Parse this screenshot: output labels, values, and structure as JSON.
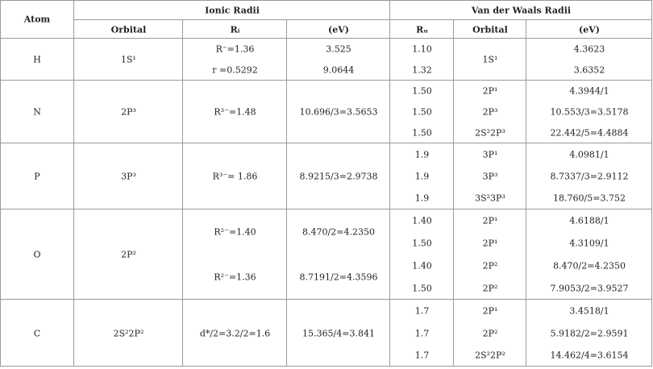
{
  "header": {
    "atom": "Atom",
    "ionic": "Ionic Radii",
    "vdw": "Van der Waals Radii",
    "columns": [
      "Orbital",
      "Rᵢ",
      "(eV)",
      "Rᵤ",
      "Orbital",
      "(eV)"
    ]
  },
  "rows": [
    {
      "atom": "H",
      "ionic_orbital": [
        "1S¹"
      ],
      "ionic_r": [
        "R⁻=1.36",
        "r =0.5292"
      ],
      "ionic_ev": [
        "3.525",
        "9.0644"
      ],
      "vdw_r": [
        "1.10",
        "1.32"
      ],
      "vdw_orbital": [
        "1S¹"
      ],
      "vdw_ev": [
        "4.3623",
        "3.6352"
      ]
    },
    {
      "atom": "N",
      "ionic_orbital": [
        "2P³"
      ],
      "ionic_r": [
        "R³⁻=1.48"
      ],
      "ionic_ev": [
        "10.696/3=3.5653"
      ],
      "vdw_r": [
        "1.50",
        "1.50",
        "1.50"
      ],
      "vdw_orbital": [
        "2P¹",
        "2P³",
        "2S²2P³"
      ],
      "vdw_ev": [
        "4.3944/1",
        "10.553/3=3.5178",
        "22.442/5=4.4884"
      ]
    },
    {
      "atom": "P",
      "ionic_orbital": [
        "3P³"
      ],
      "ionic_r": [
        "R³⁻= 1.86"
      ],
      "ionic_ev": [
        "8.9215/3=2.9738"
      ],
      "vdw_r": [
        "1.9",
        "1.9",
        "1.9"
      ],
      "vdw_orbital": [
        "3P¹",
        "3P³",
        "3S²3P³"
      ],
      "vdw_ev": [
        "4.0981/1",
        "8.7337/3=2.9112",
        "18.760/5=3.752"
      ]
    },
    {
      "atom": "O",
      "ionic_orbital": [
        "2P²"
      ],
      "ionic_r": [
        "R²⁻=1.40",
        "R²⁻=1.36"
      ],
      "ionic_ev": [
        "8.470/2=4.2350",
        "8.7191/2=4.3596"
      ],
      "vdw_r": [
        "1.40",
        "1.50",
        "1.40",
        "1.50"
      ],
      "vdw_orbital": [
        "2P¹",
        "2P¹",
        "2P²",
        "2P²"
      ],
      "vdw_ev": [
        "4.6188/1",
        "4.3109/1",
        "8.470/2=4.2350",
        "7.9053/2=3.9527"
      ]
    },
    {
      "atom": "C",
      "ionic_orbital": [
        "2S²2P²"
      ],
      "ionic_r": [
        "d*/2=3.2/2=1.6"
      ],
      "ionic_ev": [
        "15.365/4=3.841"
      ],
      "vdw_r": [
        "1.7",
        "1.7",
        "1.7"
      ],
      "vdw_orbital": [
        "2P¹",
        "2P²",
        "2S²2P²"
      ],
      "vdw_ev": [
        "3.4518/1",
        "5.9182/2=2.9591",
        "14.462/4=3.6154"
      ]
    }
  ]
}
